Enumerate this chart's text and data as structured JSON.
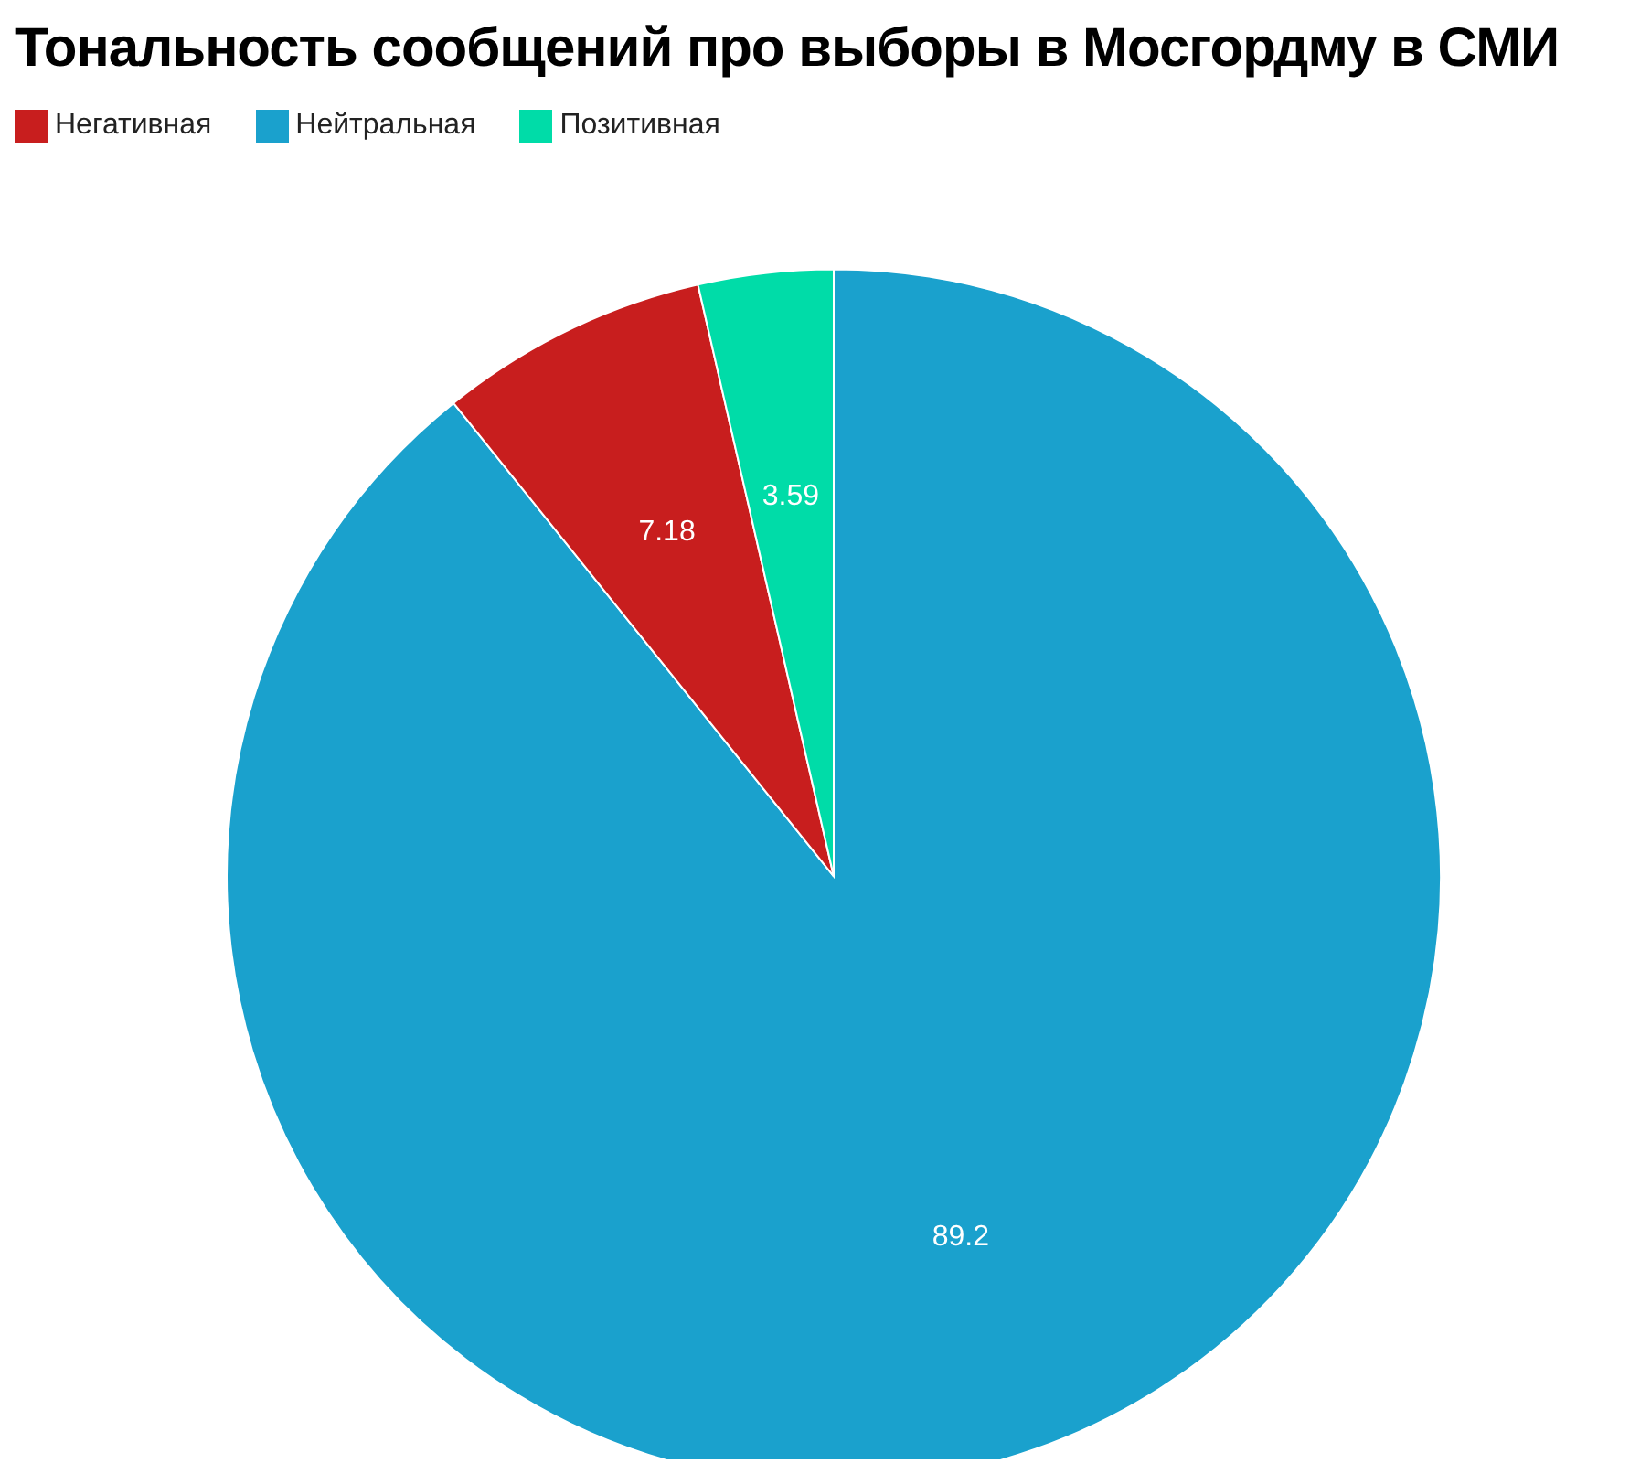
{
  "chart_data": {
    "type": "pie",
    "title": "Тональность сообщений про выборы в Мосгордму в СМИ",
    "categories": [
      "Нейтральная",
      "Негативная",
      "Позитивная"
    ],
    "values": [
      89.2,
      7.18,
      3.59
    ],
    "colors": [
      "#1aa1cd",
      "#c81e1e",
      "#00dca8"
    ],
    "data_labels": true,
    "legend": "top left"
  }
}
